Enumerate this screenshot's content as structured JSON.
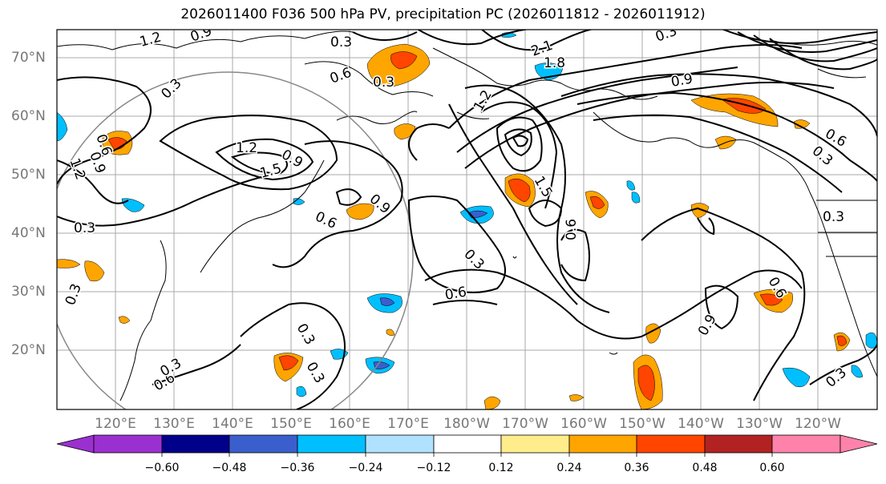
{
  "title": "2026011400 F036 500 hPa PV, precipitation PC (2026011812 - 2026011912)",
  "lat_labels": [
    "70°N",
    "60°N",
    "50°N",
    "40°N",
    "30°N",
    "20°N"
  ],
  "lon_labels": [
    "120°E",
    "130°E",
    "140°E",
    "150°E",
    "160°E",
    "170°E",
    "180°W",
    "170°W",
    "160°W",
    "150°W",
    "140°W",
    "130°W",
    "120°W"
  ],
  "colorbar": {
    "colors": [
      "#9b30d0",
      "#00008b",
      "#3a5fcd",
      "#00bfff",
      "#b0e2ff",
      "#ffffff",
      "#ffec8b",
      "#ffa500",
      "#ff4500",
      "#b22222",
      "#ff82ab"
    ],
    "tick_labels": [
      "−0.60",
      "−0.48",
      "−0.36",
      "−0.24",
      "−0.12",
      "0.12",
      "0.24",
      "0.36",
      "0.48",
      "0.60"
    ]
  },
  "contour_labels": [
    "1.2",
    "0.9",
    "0.3",
    "2.1",
    "1.8",
    "0.3",
    "0.9",
    "0.3",
    "0.6",
    "0.3",
    "1.2",
    "0.6",
    "0.9",
    "1.2",
    "0.9",
    "1.2",
    "1.5",
    "0.6",
    "0.9",
    "0.3",
    "0.6",
    "0.3",
    "1.5",
    "0.6",
    "0.3",
    "0.6",
    "0.3",
    "0.3",
    "0.3",
    "0.3",
    "0.6",
    "0.3",
    "0.9",
    "0.6",
    "0.3"
  ]
}
